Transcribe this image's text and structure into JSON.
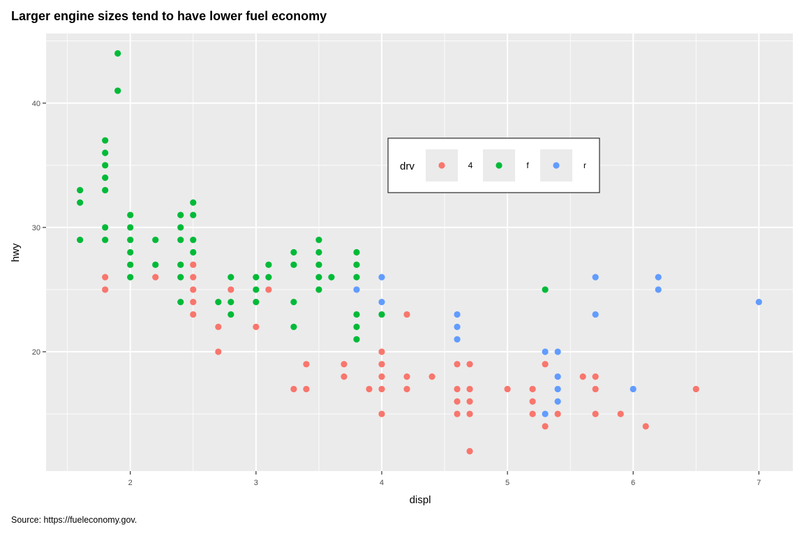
{
  "chart_data": {
    "type": "scatter",
    "title": "Larger engine sizes tend to have lower fuel economy",
    "caption": "Source: https://fueleconomy.gov.",
    "xlabel": "displ",
    "ylabel": "hwy",
    "xlim": [
      1.33,
      7.27
    ],
    "ylim": [
      10.4,
      45.6
    ],
    "xticks": [
      2,
      3,
      4,
      5,
      6,
      7
    ],
    "yticks": [
      20,
      30,
      40
    ],
    "grid": true,
    "legend": {
      "title": "drv",
      "placement": "top-center-inside",
      "entries": [
        "4",
        "f",
        "r"
      ]
    },
    "series": [
      {
        "name": "4",
        "color": "#F8766D",
        "points": [
          [
            1.8,
            26
          ],
          [
            1.8,
            25
          ],
          [
            2.2,
            26
          ],
          [
            2.5,
            27
          ],
          [
            2.5,
            26
          ],
          [
            2.5,
            25
          ],
          [
            2.5,
            24
          ],
          [
            2.5,
            23
          ],
          [
            2.7,
            22
          ],
          [
            2.7,
            20
          ],
          [
            2.8,
            25
          ],
          [
            3.0,
            22
          ],
          [
            3.1,
            25
          ],
          [
            3.3,
            17
          ],
          [
            3.4,
            19
          ],
          [
            3.4,
            17
          ],
          [
            3.7,
            19
          ],
          [
            3.7,
            18
          ],
          [
            3.9,
            17
          ],
          [
            4.0,
            20
          ],
          [
            4.0,
            19
          ],
          [
            4.0,
            18
          ],
          [
            4.0,
            17
          ],
          [
            4.0,
            15
          ],
          [
            4.2,
            23
          ],
          [
            4.2,
            18
          ],
          [
            4.2,
            17
          ],
          [
            4.4,
            18
          ],
          [
            4.6,
            19
          ],
          [
            4.6,
            17
          ],
          [
            4.6,
            16
          ],
          [
            4.6,
            15
          ],
          [
            4.7,
            19
          ],
          [
            4.7,
            17
          ],
          [
            4.7,
            16
          ],
          [
            4.7,
            15
          ],
          [
            4.7,
            12
          ],
          [
            5.0,
            17
          ],
          [
            5.2,
            17
          ],
          [
            5.2,
            16
          ],
          [
            5.2,
            15
          ],
          [
            5.3,
            19
          ],
          [
            5.3,
            14
          ],
          [
            5.4,
            15
          ],
          [
            5.6,
            18
          ],
          [
            5.7,
            18
          ],
          [
            5.7,
            17
          ],
          [
            5.7,
            15
          ],
          [
            5.9,
            15
          ],
          [
            6.1,
            14
          ],
          [
            6.5,
            17
          ]
        ]
      },
      {
        "name": "f",
        "color": "#00BA38",
        "points": [
          [
            1.6,
            33
          ],
          [
            1.6,
            32
          ],
          [
            1.6,
            29
          ],
          [
            1.8,
            37
          ],
          [
            1.8,
            36
          ],
          [
            1.8,
            35
          ],
          [
            1.8,
            34
          ],
          [
            1.8,
            33
          ],
          [
            1.8,
            30
          ],
          [
            1.8,
            29
          ],
          [
            1.9,
            44
          ],
          [
            1.9,
            41
          ],
          [
            2.0,
            31
          ],
          [
            2.0,
            30
          ],
          [
            2.0,
            29
          ],
          [
            2.0,
            28
          ],
          [
            2.0,
            27
          ],
          [
            2.0,
            26
          ],
          [
            2.2,
            29
          ],
          [
            2.2,
            27
          ],
          [
            2.4,
            31
          ],
          [
            2.4,
            30
          ],
          [
            2.4,
            29
          ],
          [
            2.4,
            27
          ],
          [
            2.4,
            26
          ],
          [
            2.4,
            24
          ],
          [
            2.5,
            32
          ],
          [
            2.5,
            31
          ],
          [
            2.5,
            29
          ],
          [
            2.5,
            28
          ],
          [
            2.7,
            24
          ],
          [
            2.8,
            26
          ],
          [
            2.8,
            24
          ],
          [
            2.8,
            23
          ],
          [
            3.0,
            26
          ],
          [
            3.0,
            25
          ],
          [
            3.0,
            24
          ],
          [
            3.1,
            27
          ],
          [
            3.1,
            26
          ],
          [
            3.3,
            28
          ],
          [
            3.3,
            27
          ],
          [
            3.3,
            24
          ],
          [
            3.3,
            22
          ],
          [
            3.5,
            29
          ],
          [
            3.5,
            28
          ],
          [
            3.5,
            27
          ],
          [
            3.5,
            26
          ],
          [
            3.5,
            25
          ],
          [
            3.6,
            26
          ],
          [
            3.8,
            28
          ],
          [
            3.8,
            27
          ],
          [
            3.8,
            26
          ],
          [
            3.8,
            23
          ],
          [
            3.8,
            22
          ],
          [
            3.8,
            21
          ],
          [
            4.0,
            23
          ],
          [
            5.3,
            25
          ]
        ]
      },
      {
        "name": "r",
        "color": "#619CFF",
        "points": [
          [
            3.8,
            25
          ],
          [
            4.0,
            26
          ],
          [
            4.0,
            24
          ],
          [
            4.6,
            23
          ],
          [
            4.6,
            22
          ],
          [
            4.6,
            21
          ],
          [
            5.3,
            20
          ],
          [
            5.3,
            15
          ],
          [
            5.4,
            20
          ],
          [
            5.4,
            18
          ],
          [
            5.4,
            17
          ],
          [
            5.4,
            16
          ],
          [
            5.7,
            26
          ],
          [
            5.7,
            23
          ],
          [
            6.0,
            17
          ],
          [
            6.2,
            26
          ],
          [
            6.2,
            25
          ],
          [
            7.0,
            24
          ]
        ]
      }
    ]
  }
}
